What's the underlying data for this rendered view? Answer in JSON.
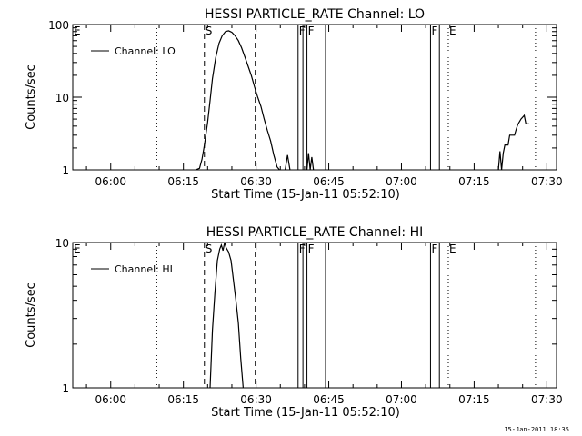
{
  "chart_data": [
    {
      "type": "line",
      "title": "HESSI PARTICLE_RATE Channel: LO",
      "xlabel": "Start Time (15-Jan-11 05:52:10)",
      "ylabel": "Counts/sec",
      "yscale": "log",
      "ylim": [
        1,
        100
      ],
      "xlim": [
        "05:52:10",
        "07:32:00"
      ],
      "xticks": [
        "06:00",
        "06:15",
        "06:30",
        "06:45",
        "07:00",
        "07:15",
        "07:30"
      ],
      "yticks": [
        "1",
        "10",
        "100"
      ],
      "legend": {
        "label": "Channel: LO",
        "placement": "top-left"
      },
      "series": [
        {
          "name": "Channel: LO",
          "segments": [
            [
              [
                "06:17:30",
                1
              ],
              [
                "06:18:20",
                1.05
              ],
              [
                "06:18:50",
                1.4
              ],
              [
                "06:19:20",
                2.2
              ],
              [
                "06:20:00",
                4.5
              ],
              [
                "06:20:30",
                9
              ],
              [
                "06:21:00",
                18
              ],
              [
                "06:21:40",
                35
              ],
              [
                "06:22:20",
                55
              ],
              [
                "06:23:00",
                70
              ],
              [
                "06:23:40",
                80
              ],
              [
                "06:24:20",
                82
              ],
              [
                "06:25:00",
                78
              ],
              [
                "06:25:40",
                70
              ],
              [
                "06:26:20",
                60
              ],
              [
                "06:27:00",
                48
              ],
              [
                "06:27:40",
                36
              ],
              [
                "06:28:20",
                27
              ],
              [
                "06:29:00",
                20
              ],
              [
                "06:29:40",
                14
              ],
              [
                "06:30:20",
                10
              ],
              [
                "06:31:00",
                7.5
              ],
              [
                "06:31:40",
                5
              ],
              [
                "06:32:20",
                3.5
              ],
              [
                "06:33:00",
                2.5
              ],
              [
                "06:33:40",
                1.6
              ],
              [
                "06:34:20",
                1.1
              ],
              [
                "06:34:50",
                1
              ]
            ],
            [
              [
                "06:36:00",
                1
              ],
              [
                "06:36:30",
                1.6
              ],
              [
                "06:37:00",
                1
              ]
            ],
            [
              [
                "06:40:30",
                1
              ],
              [
                "06:40:50",
                1.7
              ],
              [
                "06:41:10",
                1
              ],
              [
                "06:41:30",
                1.5
              ],
              [
                "06:41:50",
                1
              ]
            ],
            [
              [
                "07:20:00",
                1
              ],
              [
                "07:20:20",
                1.8
              ],
              [
                "07:20:40",
                1
              ],
              [
                "07:21:00",
                1.7
              ],
              [
                "07:21:20",
                2.2
              ],
              [
                "07:22:00",
                2.2
              ],
              [
                "07:22:20",
                3
              ],
              [
                "07:23:20",
                3
              ],
              [
                "07:23:40",
                3.6
              ],
              [
                "07:24:00",
                4.2
              ],
              [
                "07:24:40",
                5
              ],
              [
                "07:25:20",
                5.6
              ],
              [
                "07:25:40",
                4.3
              ],
              [
                "07:26:20",
                4.3
              ]
            ]
          ]
        }
      ],
      "annotations": [
        {
          "text": "E",
          "time": "05:52:10",
          "style": "none"
        },
        {
          "text": "",
          "time": "06:09:30",
          "style": "dotted"
        },
        {
          "text": "S",
          "time": "06:19:20",
          "style": "dashed"
        },
        {
          "text": "",
          "time": "06:29:50",
          "style": "dashed"
        },
        {
          "text": "F",
          "time": "06:38:40",
          "style": "solid"
        },
        {
          "text": "",
          "time": "06:39:40",
          "style": "solid"
        },
        {
          "text": "F",
          "time": "06:40:30",
          "style": "solid"
        },
        {
          "text": "",
          "time": "06:44:20",
          "style": "solid"
        },
        {
          "text": "F",
          "time": "07:06:00",
          "style": "solid"
        },
        {
          "text": "",
          "time": "07:07:50",
          "style": "solid"
        },
        {
          "text": "E",
          "time": "07:09:40",
          "style": "dotted"
        },
        {
          "text": "",
          "time": "07:27:40",
          "style": "dotted"
        }
      ]
    },
    {
      "type": "line",
      "title": "HESSI PARTICLE_RATE Channel: HI",
      "xlabel": "Start Time (15-Jan-11 05:52:10)",
      "ylabel": "Counts/sec",
      "yscale": "log",
      "ylim": [
        1,
        10
      ],
      "xlim": [
        "05:52:10",
        "07:32:00"
      ],
      "xticks": [
        "06:00",
        "06:15",
        "06:30",
        "06:45",
        "07:00",
        "07:15",
        "07:30"
      ],
      "yticks": [
        "1",
        "10"
      ],
      "legend": {
        "label": "Channel: HI",
        "placement": "top-left"
      },
      "series": [
        {
          "name": "Channel: HI",
          "segments": [
            [
              [
                "06:20:30",
                1
              ],
              [
                "06:21:00",
                2.5
              ],
              [
                "06:21:30",
                4.5
              ],
              [
                "06:22:00",
                7.5
              ],
              [
                "06:22:30",
                9
              ],
              [
                "06:22:50",
                9.6
              ],
              [
                "06:23:10",
                8.8
              ],
              [
                "06:23:30",
                10
              ],
              [
                "06:23:50",
                9.2
              ],
              [
                "06:24:20",
                8.6
              ],
              [
                "06:24:50",
                7.5
              ],
              [
                "06:25:20",
                5.5
              ],
              [
                "06:25:50",
                4
              ],
              [
                "06:26:20",
                2.8
              ],
              [
                "06:26:50",
                1.6
              ],
              [
                "06:27:20",
                1
              ]
            ]
          ]
        }
      ],
      "annotations": [
        {
          "text": "E",
          "time": "05:52:10",
          "style": "none"
        },
        {
          "text": "",
          "time": "06:09:30",
          "style": "dotted"
        },
        {
          "text": "S",
          "time": "06:19:20",
          "style": "dashed"
        },
        {
          "text": "",
          "time": "06:29:50",
          "style": "dashed"
        },
        {
          "text": "F",
          "time": "06:38:40",
          "style": "solid"
        },
        {
          "text": "",
          "time": "06:39:40",
          "style": "solid"
        },
        {
          "text": "F",
          "time": "06:40:30",
          "style": "solid"
        },
        {
          "text": "",
          "time": "06:44:20",
          "style": "solid"
        },
        {
          "text": "F",
          "time": "07:06:00",
          "style": "solid"
        },
        {
          "text": "",
          "time": "07:07:50",
          "style": "solid"
        },
        {
          "text": "E",
          "time": "07:09:40",
          "style": "dotted"
        },
        {
          "text": "",
          "time": "07:27:40",
          "style": "dotted"
        }
      ]
    }
  ],
  "footer": "15-Jan-2011 18:35"
}
